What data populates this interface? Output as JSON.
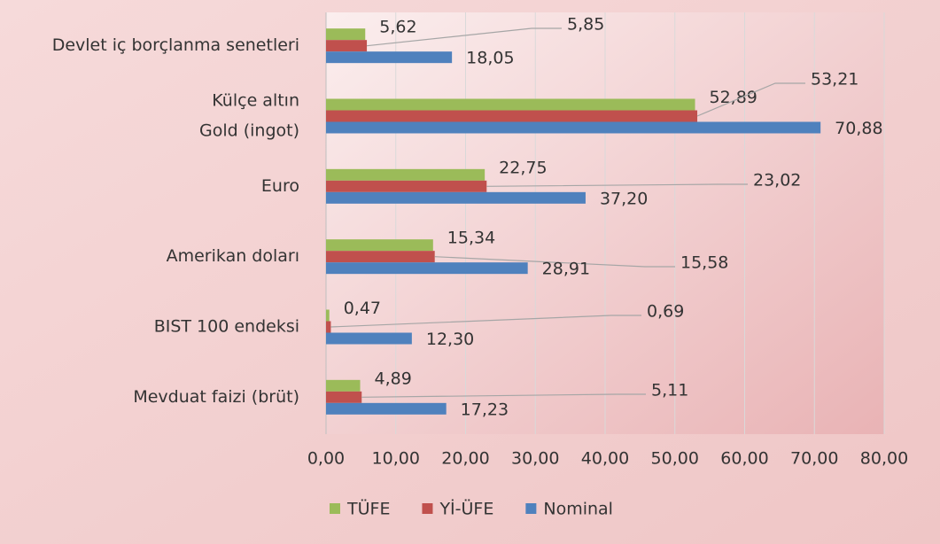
{
  "chart_data": {
    "type": "bar",
    "orientation": "horizontal",
    "categories": [
      "Devlet iç borçlanma senetleri",
      [
        "Külçe altın",
        "Gold (ingot)"
      ],
      "Euro",
      "Amerikan doları",
      "BIST 100 endeksi",
      "Mevduat faizi (brüt)"
    ],
    "series": [
      {
        "name": "TÜFE",
        "color": "#9bbb59",
        "values": [
          5.62,
          52.89,
          22.75,
          15.34,
          0.47,
          4.89
        ],
        "value_labels": [
          "5,62",
          "52,89",
          "22,75",
          "15,34",
          "0,47",
          "4,89"
        ]
      },
      {
        "name": "Yİ-ÜFE",
        "color": "#c0504d",
        "values": [
          5.85,
          53.21,
          23.02,
          15.58,
          0.69,
          5.11
        ],
        "value_labels": [
          "5,85",
          "53,21",
          "23,02",
          "15,58",
          "0,69",
          "5,11"
        ]
      },
      {
        "name": "Nominal",
        "color": "#4f81bd",
        "values": [
          18.05,
          70.88,
          37.2,
          28.91,
          12.3,
          17.23
        ],
        "value_labels": [
          "18,05",
          "70,88",
          "37,20",
          "28,91",
          "12,30",
          "17,23"
        ]
      }
    ],
    "xlim": [
      0,
      80
    ],
    "xticks": [
      {
        "value": 0,
        "label": "0,00"
      },
      {
        "value": 10,
        "label": "10,00"
      },
      {
        "value": 20,
        "label": "20,00"
      },
      {
        "value": 30,
        "label": "30,00"
      },
      {
        "value": 40,
        "label": "40,00"
      },
      {
        "value": 50,
        "label": "50,00"
      },
      {
        "value": 60,
        "label": "60,00"
      },
      {
        "value": 70,
        "label": "70,00"
      },
      {
        "value": 80,
        "label": "80,00"
      }
    ],
    "grid": true,
    "legend": "bottom"
  }
}
